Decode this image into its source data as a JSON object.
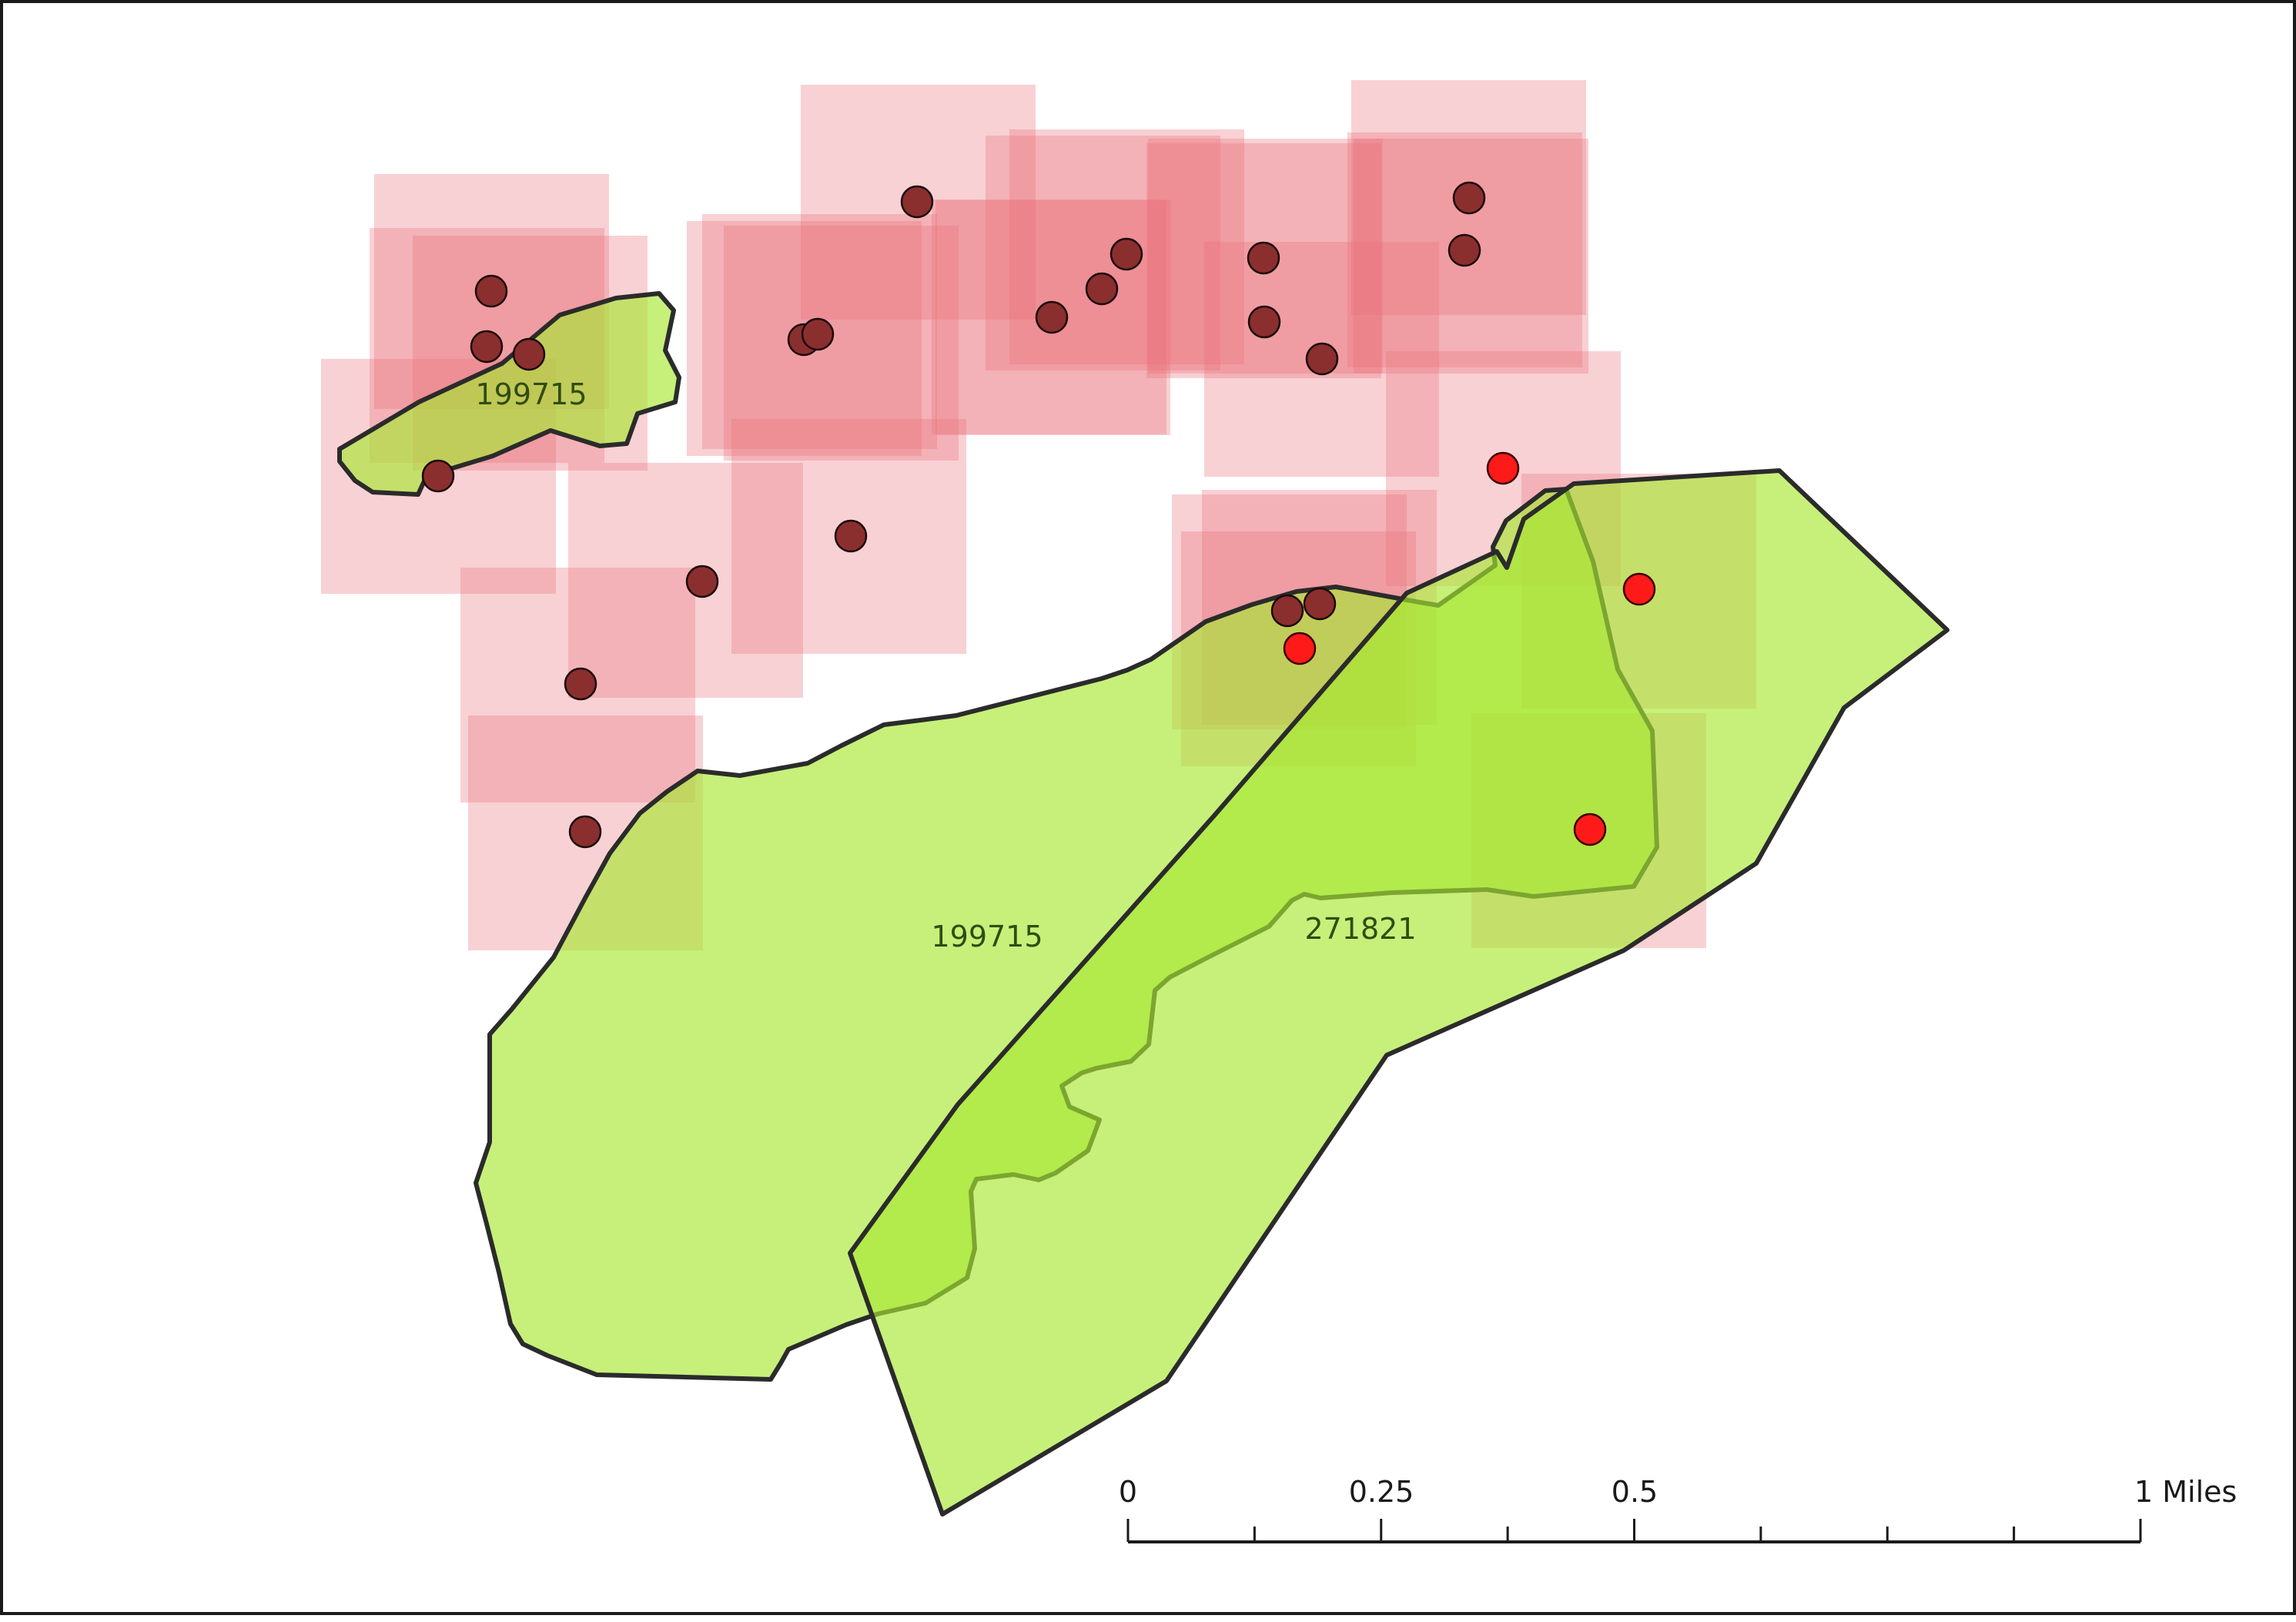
{
  "map": {
    "colors": {
      "square_fill": "#e8707a",
      "polygon_fill": "#a8e832",
      "polygon_outline": "#2b2b2b",
      "point_dark": "#8b2e2e",
      "point_red": "#ff1a1a",
      "label_text": "#2f4d10"
    },
    "polygon_labels": {
      "small_west": "199715",
      "large_main": "199715",
      "east_overlap": "271821"
    },
    "scale_bar": {
      "tick_labels": [
        "0",
        "0.25",
        "0.5",
        "1 Miles"
      ]
    }
  }
}
